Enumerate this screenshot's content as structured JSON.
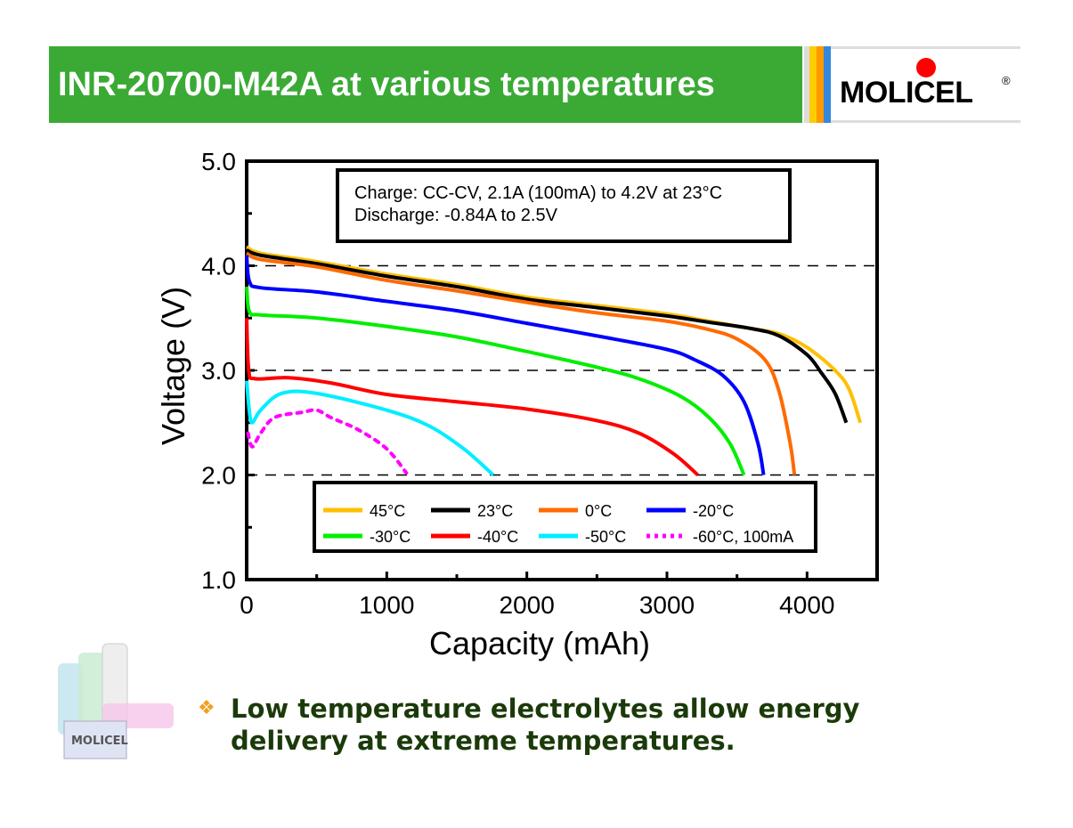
{
  "header": {
    "title": "INR-20700-M42A at various temperatures",
    "logo_text": "MOLICEL",
    "logo_mark": "®",
    "stripe_colors": [
      "#dcdcdc",
      "#ffcc00",
      "#ff9900",
      "#3388dd"
    ]
  },
  "bullet": {
    "text": "Low temperature electrolytes allow energy delivery at extreme temperatures."
  },
  "product_image": {
    "label": "MOLICEL"
  },
  "chart_data": {
    "type": "line",
    "xlabel": "Capacity (mAh)",
    "ylabel": "Voltage (V)",
    "xlim": [
      0,
      4500
    ],
    "ylim": [
      1.0,
      5.0
    ],
    "xticks": [
      0,
      1000,
      2000,
      3000,
      4000
    ],
    "yticks": [
      1.0,
      2.0,
      3.0,
      4.0,
      5.0
    ],
    "ytick_labels": [
      "1.0",
      "2.0",
      "3.0",
      "4.0",
      "5.0"
    ],
    "grid": "dashed horizontal at 2.0, 3.0, 4.0",
    "annotation": [
      "Charge: CC-CV, 2.1A (100mA) to 4.2V at 23°C",
      "Discharge: -0.84A to 2.5V"
    ],
    "legend_placement": "bottom-center",
    "series": [
      {
        "name": "45°C",
        "color": "#ffc000",
        "dash": false,
        "points": [
          [
            0,
            4.18
          ],
          [
            100,
            4.12
          ],
          [
            500,
            4.04
          ],
          [
            1000,
            3.92
          ],
          [
            1500,
            3.82
          ],
          [
            2000,
            3.7
          ],
          [
            2500,
            3.62
          ],
          [
            3000,
            3.54
          ],
          [
            3300,
            3.47
          ],
          [
            3600,
            3.4
          ],
          [
            3800,
            3.35
          ],
          [
            4000,
            3.22
          ],
          [
            4200,
            3.0
          ],
          [
            4300,
            2.82
          ],
          [
            4380,
            2.5
          ]
        ]
      },
      {
        "name": "23°C",
        "color": "#000000",
        "dash": false,
        "points": [
          [
            0,
            4.15
          ],
          [
            100,
            4.1
          ],
          [
            500,
            4.02
          ],
          [
            1000,
            3.9
          ],
          [
            1500,
            3.8
          ],
          [
            2000,
            3.68
          ],
          [
            2500,
            3.6
          ],
          [
            3000,
            3.52
          ],
          [
            3300,
            3.46
          ],
          [
            3600,
            3.4
          ],
          [
            3800,
            3.33
          ],
          [
            4000,
            3.15
          ],
          [
            4100,
            2.98
          ],
          [
            4200,
            2.78
          ],
          [
            4280,
            2.5
          ]
        ]
      },
      {
        "name": "0°C",
        "color": "#ff6a00",
        "dash": false,
        "points": [
          [
            0,
            4.12
          ],
          [
            100,
            4.06
          ],
          [
            500,
            3.99
          ],
          [
            1000,
            3.86
          ],
          [
            1500,
            3.76
          ],
          [
            2000,
            3.65
          ],
          [
            2500,
            3.55
          ],
          [
            3000,
            3.47
          ],
          [
            3300,
            3.39
          ],
          [
            3500,
            3.3
          ],
          [
            3700,
            3.1
          ],
          [
            3800,
            2.8
          ],
          [
            3880,
            2.3
          ],
          [
            3910,
            2.0
          ]
        ]
      },
      {
        "name": "-20°C",
        "color": "#0000ff",
        "dash": false,
        "points": [
          [
            0,
            4.1
          ],
          [
            20,
            3.85
          ],
          [
            100,
            3.79
          ],
          [
            500,
            3.75
          ],
          [
            1000,
            3.66
          ],
          [
            1500,
            3.57
          ],
          [
            2000,
            3.45
          ],
          [
            2500,
            3.33
          ],
          [
            3000,
            3.2
          ],
          [
            3200,
            3.1
          ],
          [
            3400,
            2.95
          ],
          [
            3550,
            2.7
          ],
          [
            3650,
            2.3
          ],
          [
            3690,
            2.0
          ]
        ]
      },
      {
        "name": "-30°C",
        "color": "#00ee00",
        "dash": false,
        "points": [
          [
            0,
            3.8
          ],
          [
            20,
            3.56
          ],
          [
            100,
            3.53
          ],
          [
            500,
            3.5
          ],
          [
            1000,
            3.42
          ],
          [
            1500,
            3.32
          ],
          [
            2000,
            3.18
          ],
          [
            2500,
            3.03
          ],
          [
            2800,
            2.92
          ],
          [
            3100,
            2.75
          ],
          [
            3300,
            2.55
          ],
          [
            3450,
            2.3
          ],
          [
            3550,
            2.0
          ]
        ]
      },
      {
        "name": "-40°C",
        "color": "#ff0000",
        "dash": false,
        "points": [
          [
            0,
            3.5
          ],
          [
            15,
            3.0
          ],
          [
            60,
            2.92
          ],
          [
            300,
            2.93
          ],
          [
            600,
            2.88
          ],
          [
            1000,
            2.77
          ],
          [
            1500,
            2.7
          ],
          [
            2000,
            2.63
          ],
          [
            2500,
            2.52
          ],
          [
            2800,
            2.4
          ],
          [
            3050,
            2.2
          ],
          [
            3220,
            2.0
          ]
        ]
      },
      {
        "name": "-50°C",
        "color": "#00eeff",
        "dash": false,
        "points": [
          [
            0,
            2.9
          ],
          [
            20,
            2.6
          ],
          [
            40,
            2.5
          ],
          [
            100,
            2.62
          ],
          [
            250,
            2.78
          ],
          [
            500,
            2.78
          ],
          [
            1000,
            2.62
          ],
          [
            1300,
            2.47
          ],
          [
            1550,
            2.25
          ],
          [
            1760,
            2.0
          ]
        ]
      },
      {
        "name": "-60°C, 100mA",
        "color": "#ff00ff",
        "dash": true,
        "points": [
          [
            10,
            2.4
          ],
          [
            40,
            2.27
          ],
          [
            100,
            2.4
          ],
          [
            200,
            2.55
          ],
          [
            400,
            2.6
          ],
          [
            500,
            2.62
          ],
          [
            600,
            2.55
          ],
          [
            800,
            2.43
          ],
          [
            1000,
            2.25
          ],
          [
            1140,
            2.02
          ]
        ]
      }
    ]
  }
}
